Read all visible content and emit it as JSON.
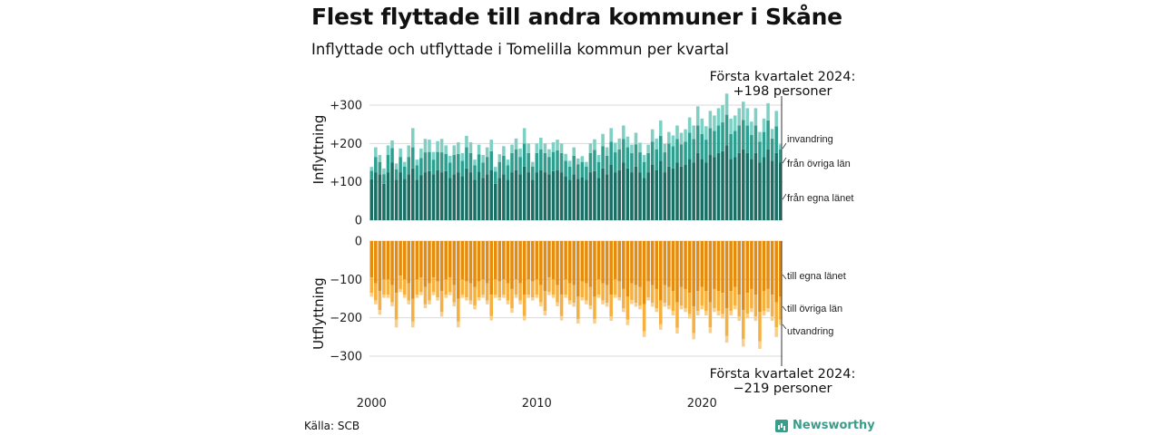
{
  "header": {
    "title": "Flest flyttade till andra kommuner i Skåne",
    "subtitle": "Inflyttade och utflyttade i Tomelilla kommun per kvartal"
  },
  "notes": {
    "top_line1": "Första kvartalet 2024:",
    "top_line2": "+198 personer",
    "bottom_line1": "Första kvartalet 2024:",
    "bottom_line2": "−219 personer"
  },
  "footer": {
    "source": "Källa: SCB",
    "brand": "Newsworthy"
  },
  "colors": {
    "in_own": "#1b6e63",
    "in_other": "#2e9e8f",
    "in_abroad": "#7fd0c4",
    "out_own": "#e58b0d",
    "out_other": "#f5b040",
    "out_abroad": "#f9cf8a",
    "grid": "#d9d9d9"
  },
  "chart_data": [
    {
      "type": "bar",
      "stacked": true,
      "ylabel": "Inflyttning",
      "ylim": [
        0,
        300
      ],
      "yticks": [
        "0",
        "+100",
        "+200",
        "+300"
      ],
      "xticks": [
        "2000",
        "2010",
        "2020"
      ],
      "x_start": "2000 K1",
      "x_end": "2024 K1",
      "series": [
        {
          "name": "från egna länet",
          "values": [
            107,
            125,
            120,
            95,
            125,
            150,
            105,
            125,
            108,
            120,
            135,
            105,
            117,
            125,
            128,
            120,
            130,
            125,
            128,
            110,
            120,
            125,
            115,
            135,
            125,
            105,
            127,
            110,
            120,
            130,
            95,
            110,
            120,
            105,
            125,
            130,
            120,
            140,
            125,
            105,
            125,
            130,
            125,
            120,
            128,
            130,
            125,
            115,
            105,
            120,
            108,
            112,
            105,
            125,
            128,
            110,
            135,
            120,
            145,
            125,
            130,
            150,
            135,
            125,
            140,
            125,
            110,
            125,
            145,
            130,
            155,
            125,
            140,
            135,
            150,
            140,
            145,
            160,
            150,
            175,
            160,
            150,
            170,
            165,
            175,
            180,
            195,
            160,
            165,
            175,
            185,
            175,
            160,
            175,
            150,
            165,
            185,
            155,
            175,
            150
          ]
        },
        {
          "name": "från övriga län",
          "values": [
            22,
            40,
            32,
            25,
            45,
            38,
            28,
            40,
            32,
            45,
            55,
            38,
            45,
            52,
            50,
            38,
            48,
            52,
            45,
            40,
            50,
            48,
            40,
            55,
            50,
            38,
            45,
            40,
            45,
            50,
            32,
            42,
            48,
            38,
            50,
            55,
            45,
            60,
            50,
            35,
            50,
            55,
            50,
            45,
            50,
            52,
            50,
            40,
            35,
            48,
            38,
            40,
            35,
            50,
            55,
            42,
            58,
            48,
            60,
            52,
            55,
            62,
            55,
            50,
            58,
            52,
            42,
            50,
            60,
            55,
            65,
            52,
            60,
            58,
            62,
            58,
            60,
            68,
            62,
            72,
            65,
            60,
            70,
            68,
            72,
            75,
            80,
            65,
            68,
            72,
            76,
            72,
            62,
            72,
            55,
            65,
            75,
            58,
            70,
            35
          ]
        },
        {
          "name": "invandring",
          "values": [
            10,
            25,
            18,
            15,
            25,
            20,
            15,
            22,
            12,
            30,
            50,
            15,
            25,
            35,
            32,
            20,
            28,
            35,
            22,
            18,
            25,
            30,
            20,
            30,
            28,
            15,
            25,
            20,
            25,
            30,
            12,
            20,
            25,
            15,
            22,
            28,
            22,
            40,
            25,
            12,
            25,
            30,
            25,
            20,
            25,
            28,
            25,
            18,
            15,
            22,
            15,
            15,
            12,
            25,
            28,
            18,
            32,
            22,
            35,
            25,
            28,
            35,
            28,
            22,
            30,
            25,
            18,
            22,
            32,
            28,
            40,
            22,
            30,
            28,
            35,
            30,
            32,
            40,
            35,
            50,
            40,
            35,
            45,
            40,
            45,
            45,
            55,
            40,
            40,
            45,
            48,
            45,
            35,
            45,
            25,
            35,
            45,
            25,
            40,
            13
          ]
        }
      ]
    },
    {
      "type": "bar",
      "stacked": true,
      "ylabel": "Utflyttning",
      "ylim": [
        -300,
        0
      ],
      "yticks": [
        "0",
        "−100",
        "−200",
        "−300"
      ],
      "xticks": [
        "2000",
        "2010",
        "2020"
      ],
      "x_start": "2000 K1",
      "x_end": "2024 K1",
      "series": [
        {
          "name": "till egna länet",
          "values": [
            -95,
            -110,
            -130,
            -100,
            -100,
            -115,
            -135,
            -90,
            -100,
            -110,
            -150,
            -100,
            -95,
            -120,
            -110,
            -95,
            -105,
            -130,
            -100,
            -95,
            -115,
            -150,
            -100,
            -105,
            -110,
            -120,
            -105,
            -100,
            -110,
            -140,
            -100,
            -105,
            -100,
            -110,
            -125,
            -100,
            -110,
            -140,
            -100,
            -105,
            -100,
            -115,
            -130,
            -95,
            -100,
            -115,
            -140,
            -100,
            -110,
            -115,
            -145,
            -105,
            -110,
            -120,
            -145,
            -100,
            -110,
            -115,
            -140,
            -100,
            -105,
            -125,
            -145,
            -110,
            -115,
            -120,
            -165,
            -105,
            -115,
            -125,
            -155,
            -115,
            -120,
            -130,
            -160,
            -120,
            -125,
            -135,
            -170,
            -130,
            -120,
            -130,
            -160,
            -125,
            -130,
            -135,
            -175,
            -130,
            -120,
            -140,
            -180,
            -135,
            -125,
            -140,
            -185,
            -130,
            -125,
            -140,
            -160,
            -145
          ]
        },
        {
          "name": "till övriga län",
          "values": [
            -40,
            -45,
            -50,
            -40,
            -40,
            -45,
            -70,
            -35,
            -40,
            -45,
            -60,
            -40,
            -38,
            -45,
            -45,
            -38,
            -42,
            -55,
            -40,
            -38,
            -45,
            -60,
            -40,
            -42,
            -45,
            -48,
            -42,
            -40,
            -45,
            -55,
            -40,
            -42,
            -40,
            -45,
            -50,
            -40,
            -45,
            -55,
            -40,
            -42,
            -40,
            -45,
            -52,
            -38,
            -40,
            -45,
            -55,
            -40,
            -45,
            -46,
            -58,
            -42,
            -45,
            -48,
            -58,
            -40,
            -45,
            -46,
            -56,
            -40,
            -42,
            -50,
            -60,
            -44,
            -46,
            -48,
            -70,
            -42,
            -46,
            -50,
            -62,
            -46,
            -48,
            -52,
            -66,
            -48,
            -50,
            -55,
            -70,
            -52,
            -48,
            -52,
            -65,
            -50,
            -52,
            -55,
            -72,
            -52,
            -48,
            -56,
            -75,
            -54,
            -50,
            -56,
            -76,
            -52,
            -50,
            -56,
            -65,
            -60
          ]
        },
        {
          "name": "utvandring",
          "values": [
            -10,
            -10,
            -12,
            -8,
            -8,
            -10,
            -20,
            -8,
            -8,
            -10,
            -15,
            -8,
            -8,
            -10,
            -10,
            -8,
            -8,
            -12,
            -8,
            -8,
            -10,
            -15,
            -8,
            -8,
            -10,
            -10,
            -8,
            -8,
            -10,
            -12,
            -8,
            -8,
            -8,
            -10,
            -12,
            -8,
            -10,
            -12,
            -8,
            -8,
            -8,
            -10,
            -12,
            -8,
            -8,
            -10,
            -12,
            -8,
            -10,
            -10,
            -12,
            -8,
            -10,
            -10,
            -12,
            -8,
            -10,
            -10,
            -12,
            -8,
            -8,
            -10,
            -14,
            -10,
            -10,
            -10,
            -15,
            -8,
            -10,
            -10,
            -14,
            -10,
            -10,
            -12,
            -15,
            -10,
            -10,
            -12,
            -16,
            -12,
            -10,
            -12,
            -15,
            -10,
            -12,
            -12,
            -18,
            -12,
            -10,
            -12,
            -20,
            -12,
            -10,
            -12,
            -20,
            -12,
            -10,
            -12,
            -25,
            -14
          ]
        }
      ]
    }
  ]
}
